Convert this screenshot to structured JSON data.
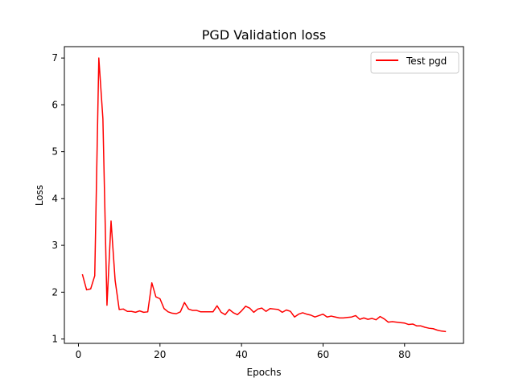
{
  "chart_data": {
    "type": "line",
    "title": "PGD Validation loss",
    "xlabel": "Epochs",
    "ylabel": "Loss",
    "xlim": [
      -3.45,
      94.45
    ],
    "ylim": [
      0.907,
      7.243
    ],
    "xticks": [
      0,
      20,
      40,
      60,
      80
    ],
    "yticks": [
      1,
      2,
      3,
      4,
      5,
      6,
      7
    ],
    "grid": false,
    "legend_position": "top-right",
    "series": [
      {
        "name": "Test pgd",
        "color": "#ff0000",
        "x": [
          1,
          2,
          3,
          4,
          5,
          6,
          7,
          8,
          9,
          10,
          11,
          12,
          13,
          14,
          15,
          16,
          17,
          18,
          19,
          20,
          21,
          22,
          23,
          24,
          25,
          26,
          27,
          28,
          29,
          30,
          31,
          32,
          33,
          34,
          35,
          36,
          37,
          38,
          39,
          40,
          41,
          42,
          43,
          44,
          45,
          46,
          47,
          48,
          49,
          50,
          51,
          52,
          53,
          54,
          55,
          56,
          57,
          58,
          59,
          60,
          61,
          62,
          63,
          64,
          65,
          66,
          67,
          68,
          69,
          70,
          71,
          72,
          73,
          74,
          75,
          76,
          77,
          78,
          79,
          80,
          81,
          82,
          83,
          84,
          85,
          86,
          87,
          88,
          89,
          90
        ],
        "y": [
          2.37,
          2.05,
          2.07,
          2.35,
          7.0,
          5.7,
          1.72,
          3.52,
          2.25,
          1.63,
          1.64,
          1.59,
          1.59,
          1.57,
          1.6,
          1.57,
          1.58,
          2.2,
          1.9,
          1.86,
          1.65,
          1.58,
          1.55,
          1.54,
          1.58,
          1.78,
          1.64,
          1.61,
          1.61,
          1.58,
          1.58,
          1.58,
          1.58,
          1.71,
          1.57,
          1.52,
          1.63,
          1.56,
          1.52,
          1.6,
          1.7,
          1.66,
          1.57,
          1.64,
          1.66,
          1.59,
          1.65,
          1.64,
          1.63,
          1.57,
          1.62,
          1.59,
          1.47,
          1.53,
          1.56,
          1.53,
          1.51,
          1.47,
          1.5,
          1.53,
          1.47,
          1.49,
          1.47,
          1.45,
          1.45,
          1.46,
          1.47,
          1.5,
          1.42,
          1.45,
          1.42,
          1.44,
          1.41,
          1.48,
          1.43,
          1.36,
          1.37,
          1.36,
          1.35,
          1.34,
          1.31,
          1.32,
          1.28,
          1.28,
          1.25,
          1.23,
          1.22,
          1.19,
          1.17,
          1.16
        ]
      }
    ]
  }
}
